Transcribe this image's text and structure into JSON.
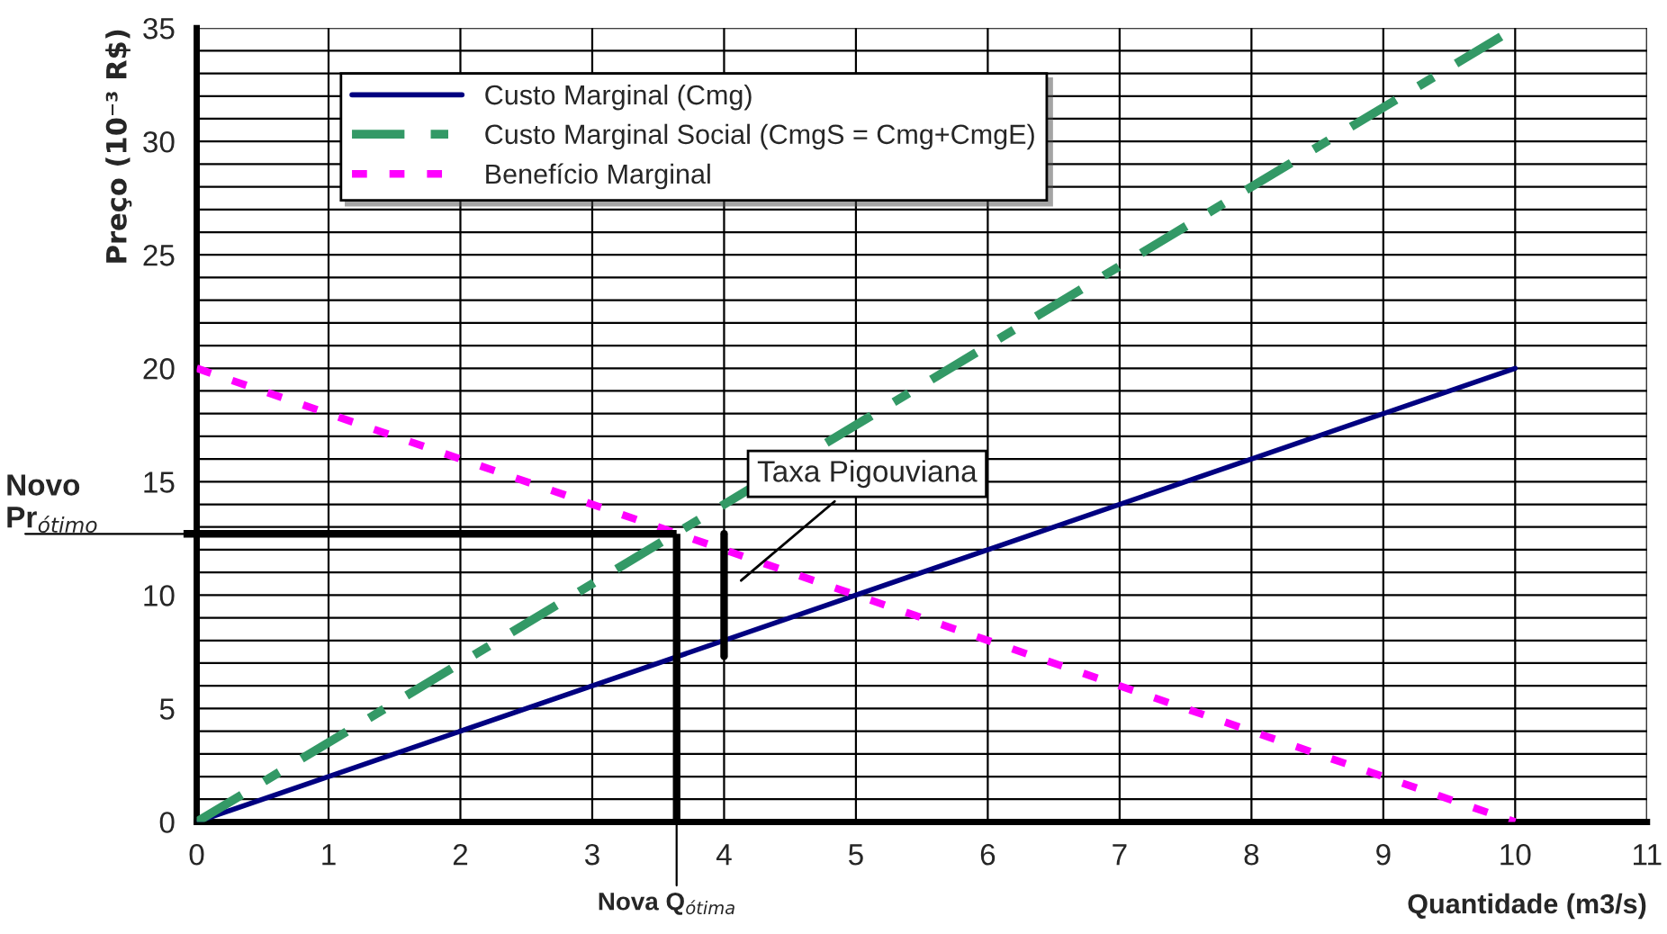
{
  "chart_data": {
    "type": "line",
    "xlabel": "Quantidade (m3/s)",
    "ylabel": "Preço (10⁻³ R$)",
    "series": [
      {
        "name": "Custo Marginal (Cmg)",
        "color": "#000080",
        "x": [
          0,
          10
        ],
        "values": [
          0,
          20
        ],
        "line_style": "solid"
      },
      {
        "name": "Custo Marginal Social (CmgS = Cmg+CmgE)",
        "color": "#339966",
        "x": [
          0,
          10
        ],
        "values": [
          0,
          35
        ],
        "line_style": "dashed"
      },
      {
        "name": "Benefício Marginal",
        "color": "#ff00ff",
        "x": [
          0,
          10
        ],
        "values": [
          20,
          0
        ],
        "line_style": "dotted"
      },
      {
        "color": "#000000",
        "x": [
          4,
          4
        ],
        "values": [
          7.3,
          12.7
        ],
        "line_style": "solid"
      }
    ],
    "ref_lines": [
      {
        "axis": "y",
        "value": 12.7,
        "label": "Novo\nPr$_{ótimo}$",
        "color": "#000000"
      },
      {
        "axis": "x",
        "value": 3.64,
        "label": "Nova Q$_{ótima}$",
        "color": "#000000"
      }
    ],
    "annotations": [
      "Taxa Pigouviana"
    ],
    "xlim": [
      0,
      11
    ],
    "xticks": [
      0,
      1,
      2,
      3,
      4,
      5,
      6,
      7,
      8,
      9,
      10,
      11
    ],
    "ylim": [
      0,
      35
    ],
    "yticks": [
      0,
      {
        "value": 1,
        "label": null
      },
      {
        "value": 2,
        "label": null
      },
      {
        "value": 3,
        "label": null
      },
      {
        "value": 4,
        "label": null
      },
      5,
      {
        "value": 6,
        "label": null
      },
      {
        "value": 7,
        "label": null
      },
      {
        "value": 8,
        "label": null
      },
      {
        "value": 9,
        "label": null
      },
      10,
      {
        "value": 11,
        "label": null
      },
      {
        "value": 12,
        "label": null
      },
      {
        "value": 13,
        "label": null
      },
      {
        "value": 14,
        "label": null
      },
      15,
      {
        "value": 16,
        "label": null
      },
      {
        "value": 17,
        "label": null
      },
      {
        "value": 18,
        "label": null
      },
      {
        "value": 19,
        "label": null
      },
      20,
      {
        "value": 21,
        "label": null
      },
      {
        "value": 22,
        "label": null
      },
      {
        "value": 23,
        "label": null
      },
      {
        "value": 24,
        "label": null
      },
      25,
      {
        "value": 26,
        "label": null
      },
      {
        "value": 27,
        "label": null
      },
      {
        "value": 28,
        "label": null
      },
      {
        "value": 29,
        "label": null
      },
      30,
      {
        "value": 31,
        "label": null
      },
      {
        "value": 32,
        "label": null
      },
      {
        "value": 33,
        "label": null
      },
      {
        "value": 34,
        "label": null
      },
      35
    ],
    "grid": true,
    "legend": "top left",
    "marker": "none"
  }
}
